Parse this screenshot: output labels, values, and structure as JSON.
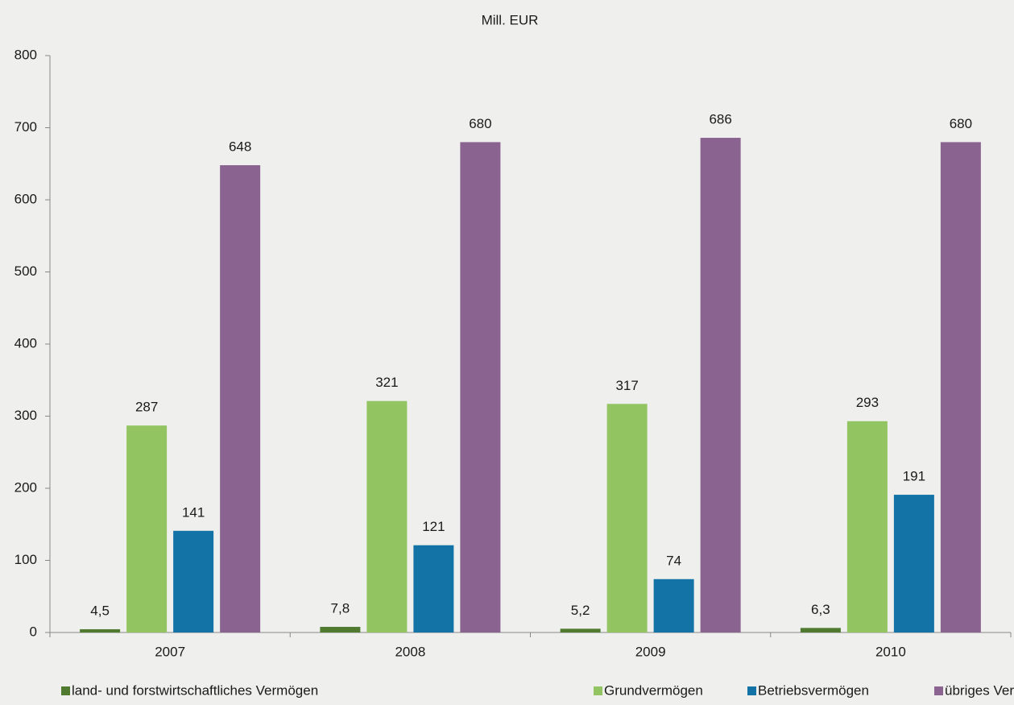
{
  "chart_data": {
    "type": "bar",
    "title": "Mill. EUR",
    "categories": [
      "2007",
      "2008",
      "2009",
      "2010"
    ],
    "series": [
      {
        "name": "land- und forstwirtschaftliches Vermögen",
        "color": "#4f7a30",
        "values": [
          4.5,
          7.8,
          5.2,
          6.3
        ],
        "value_labels": [
          "4,5",
          "7,8",
          "5,2",
          "6,3"
        ]
      },
      {
        "name": "Grundvermögen",
        "color": "#92c462",
        "values": [
          287,
          321,
          317,
          293
        ]
      },
      {
        "name": "Betriebsvermögen",
        "color": "#1473a6",
        "values": [
          141,
          121,
          74,
          191
        ]
      },
      {
        "name": "übriges Vermögen",
        "color": "#8b6391",
        "values": [
          648,
          680,
          686,
          680
        ]
      }
    ],
    "ylim": [
      0,
      800
    ],
    "yticks": [
      0,
      100,
      200,
      300,
      400,
      500,
      600,
      700,
      800
    ],
    "grid": false
  }
}
